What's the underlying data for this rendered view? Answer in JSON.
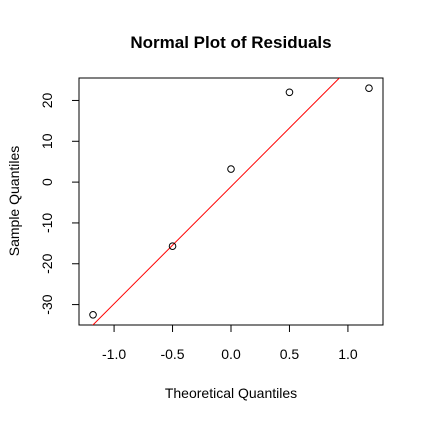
{
  "chart_data": {
    "type": "scatter",
    "title": "Normal Plot of Residuals",
    "xlabel": "Theoretical Quantiles",
    "ylabel": "Sample Quantiles",
    "xlim": [
      -1.3,
      1.3
    ],
    "ylim": [
      -35,
      25.5
    ],
    "x_ticks": [
      -1.0,
      -0.5,
      0.0,
      0.5,
      1.0
    ],
    "x_tick_labels": [
      "-1.0",
      "-0.5",
      "0.0",
      "0.5",
      "1.0"
    ],
    "y_ticks": [
      -30,
      -20,
      -10,
      0,
      10,
      20
    ],
    "y_tick_labels": [
      "-30",
      "-20",
      "-10",
      "0",
      "10",
      "20"
    ],
    "points": [
      {
        "x": -1.18,
        "y": -32.5
      },
      {
        "x": -0.5,
        "y": -15.7
      },
      {
        "x": 0.0,
        "y": 3.2
      },
      {
        "x": 0.5,
        "y": 22.0
      },
      {
        "x": 1.18,
        "y": 23.0
      }
    ],
    "reference_line": {
      "intercept": -1.1,
      "slope": 28.7,
      "color": "#ff0000"
    },
    "point_style": "open-circle",
    "grid": false,
    "legend": "none"
  }
}
